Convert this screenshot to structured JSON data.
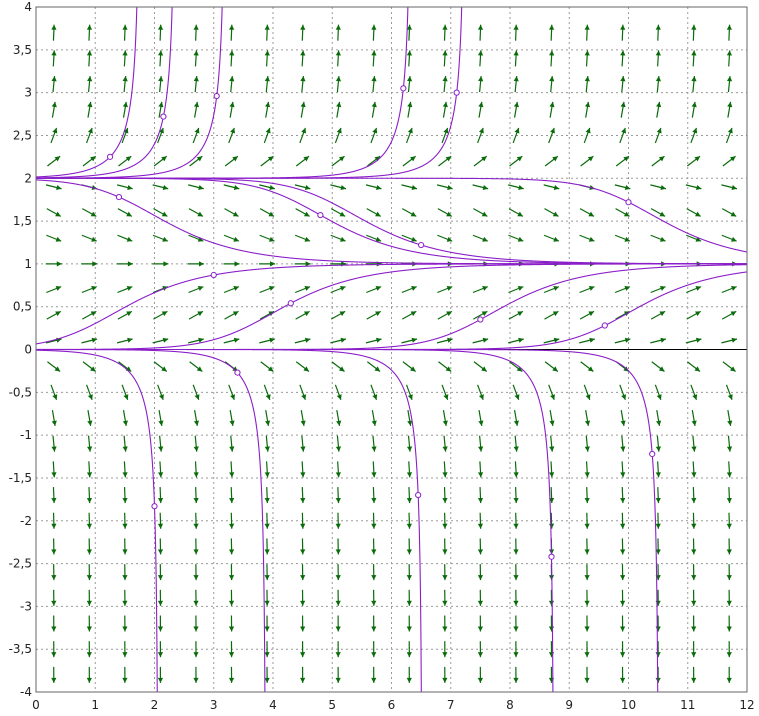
{
  "chart_data": {
    "type": "slope_field",
    "title": "",
    "xlabel": "",
    "ylabel": "",
    "xlim": [
      0,
      12
    ],
    "ylim": [
      -4,
      4
    ],
    "grid": true,
    "x_ticks": [
      "0",
      "1",
      "2",
      "3",
      "4",
      "5",
      "6",
      "7",
      "8",
      "9",
      "10",
      "11",
      "12"
    ],
    "y_ticks": [
      "4",
      "3,5",
      "3",
      "2,5",
      "2",
      "1,5",
      "1",
      "0,5",
      "0",
      "-0,5",
      "-1",
      "-1,5",
      "-2",
      "-2,5",
      "-3",
      "-3,5",
      "-4"
    ],
    "field_equation": "y' = y(y-1)(y-2)",
    "field_color": "#0a6b0a",
    "solution_color": "#8a1ec8",
    "field_grid": {
      "x_start": 0.3,
      "x_step": 0.6,
      "y_start": -3.8,
      "y_step": 0.3
    },
    "solutions": [
      {
        "x0": 1.25,
        "y0": 2.25
      },
      {
        "x0": 2.15,
        "y0": 2.72
      },
      {
        "x0": 3.05,
        "y0": 2.96
      },
      {
        "x0": 6.2,
        "y0": 3.05
      },
      {
        "x0": 7.1,
        "y0": 3.0
      },
      {
        "x0": 1.4,
        "y0": 1.78
      },
      {
        "x0": 4.8,
        "y0": 1.57
      },
      {
        "x0": 10.0,
        "y0": 1.72
      },
      {
        "x0": 6.5,
        "y0": 1.22
      },
      {
        "x0": 3.0,
        "y0": 0.87
      },
      {
        "x0": 4.3,
        "y0": 0.54
      },
      {
        "x0": 7.5,
        "y0": 0.35
      },
      {
        "x0": 9.6,
        "y0": 0.28
      },
      {
        "x0": 3.4,
        "y0": -0.27
      },
      {
        "x0": 2.0,
        "y0": -1.83
      },
      {
        "x0": 6.45,
        "y0": -1.7
      },
      {
        "x0": 8.7,
        "y0": -2.42
      },
      {
        "x0": 10.4,
        "y0": -1.22
      }
    ]
  }
}
